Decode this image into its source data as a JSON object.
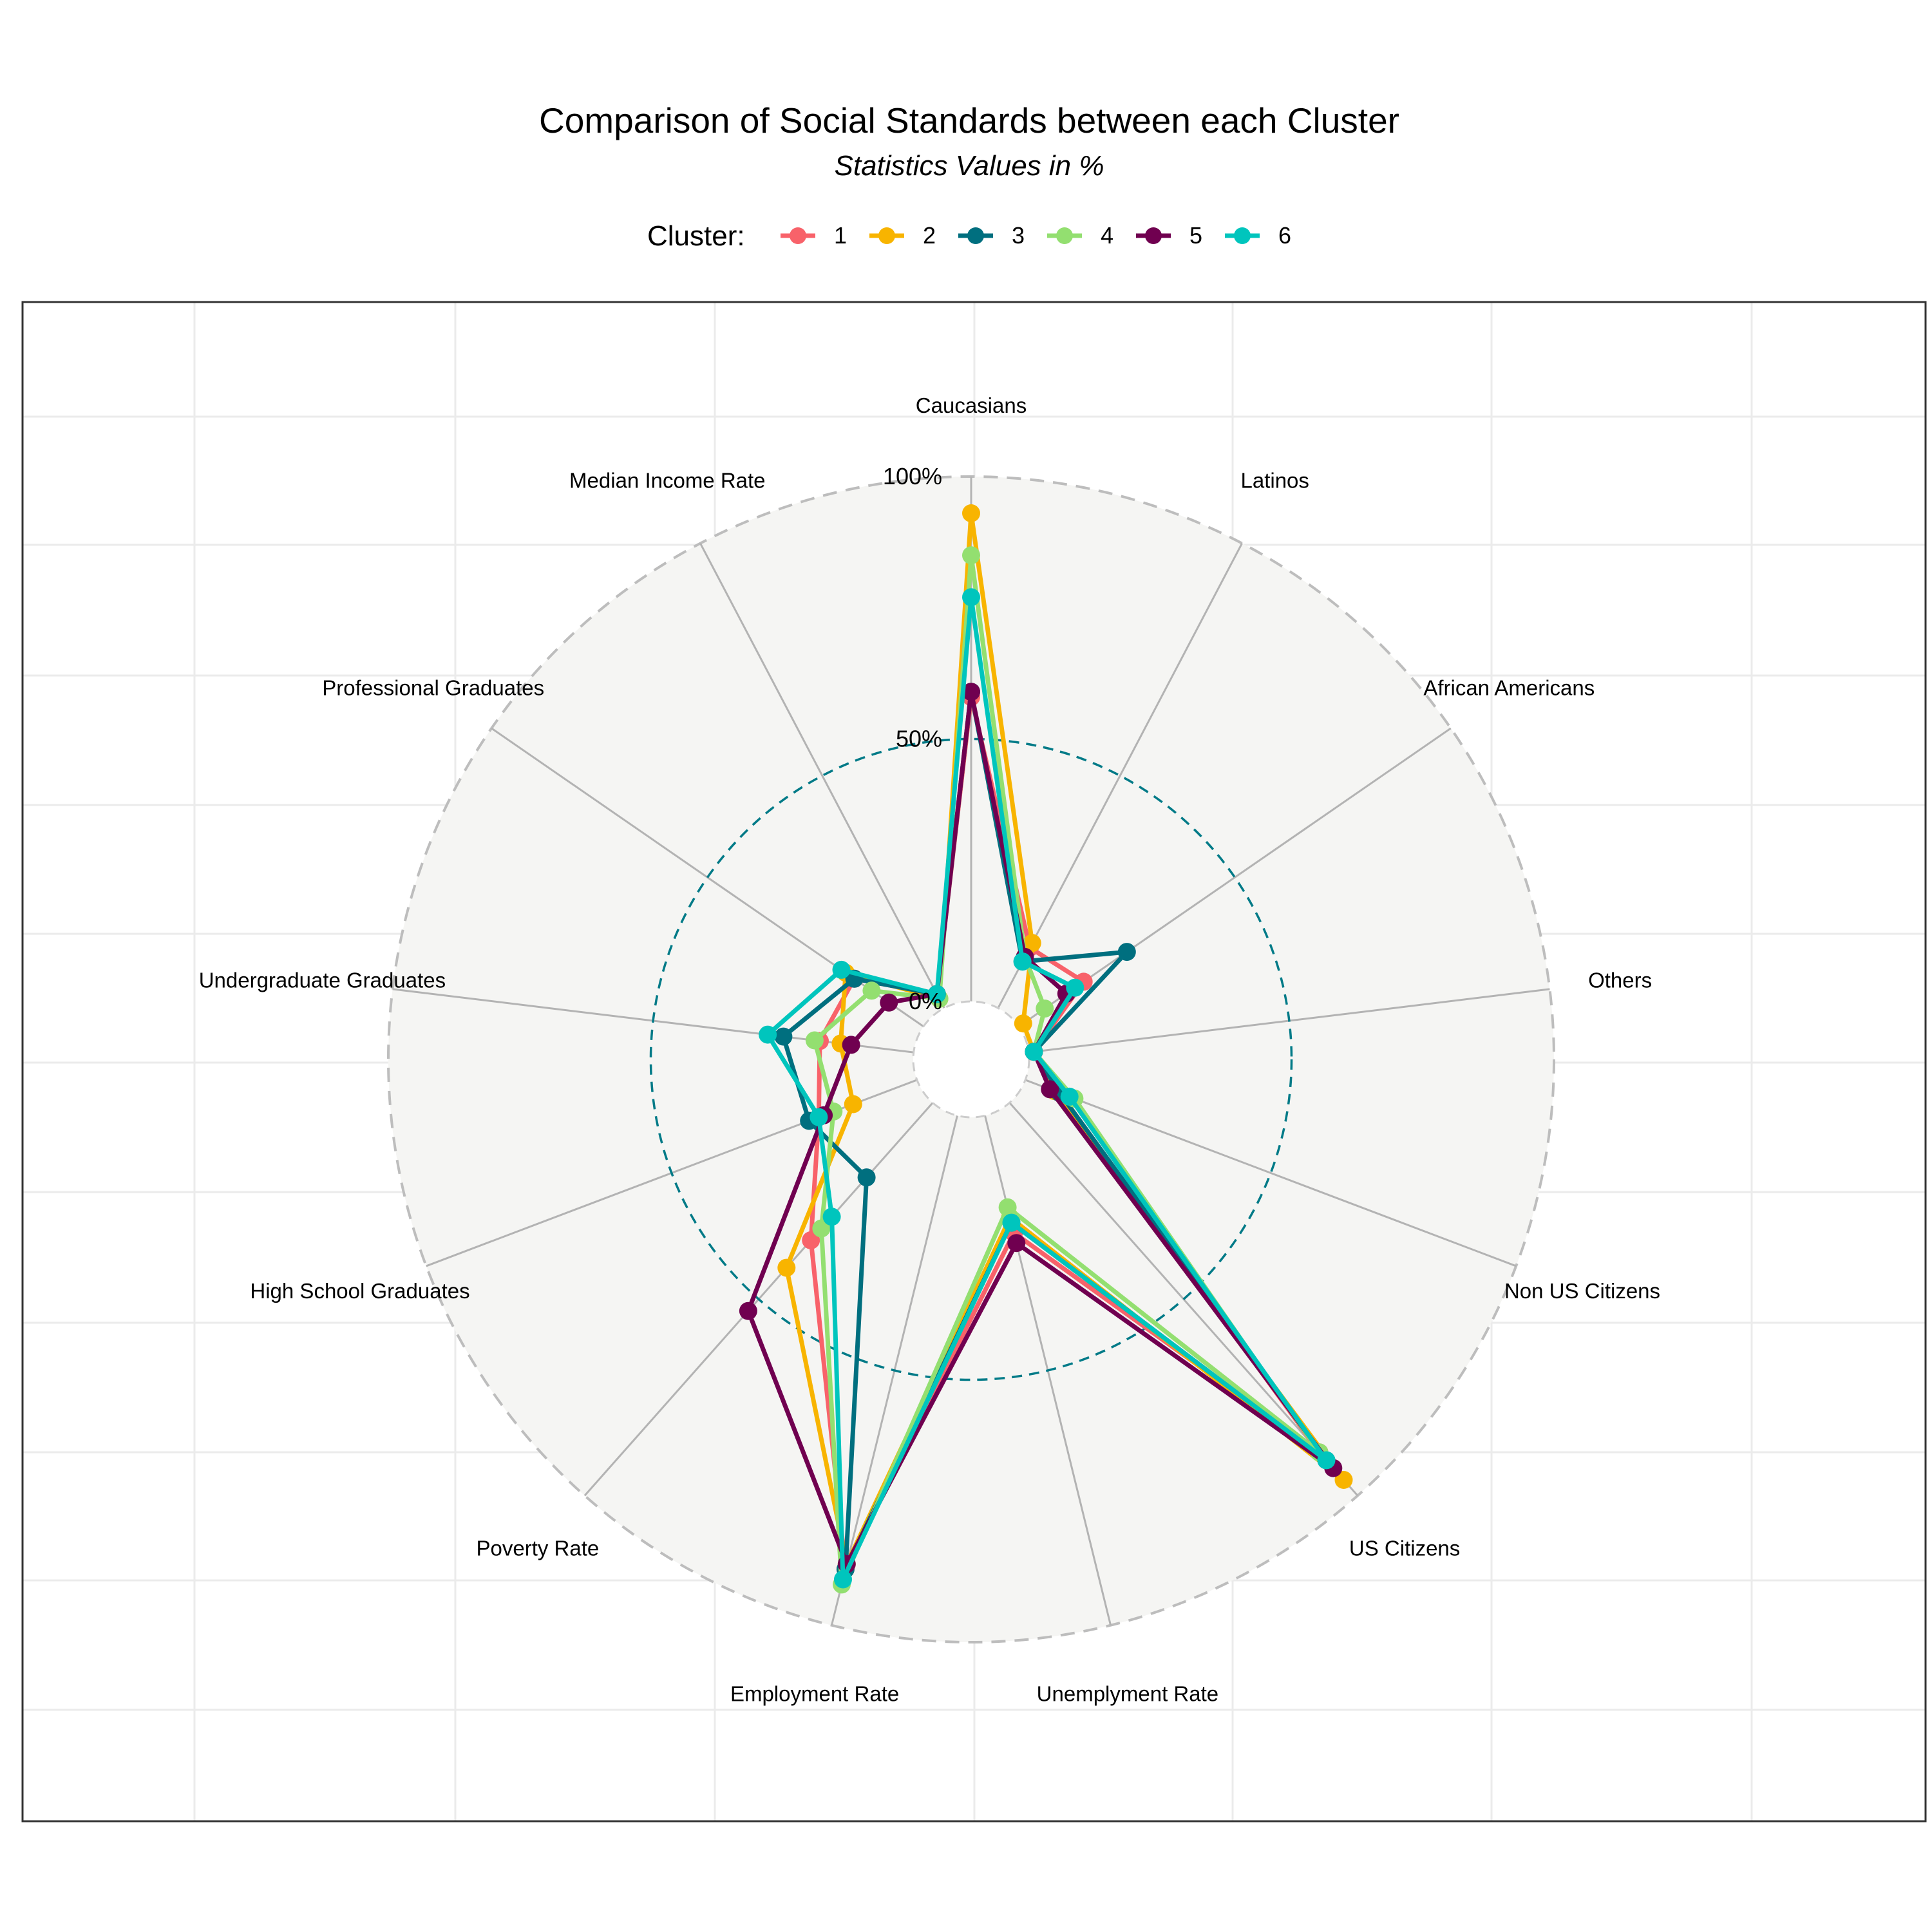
{
  "chart_data": {
    "type": "radar",
    "title": "Comparison of Social Standards between each Cluster",
    "subtitle": "Statistics Values in %",
    "legend": {
      "title": "Cluster:",
      "position": "top"
    },
    "axes": [
      "Caucasians",
      "Latinos",
      "African Americans",
      "Others",
      "Non US Citizens",
      "US Citizens",
      "Unemplyment Rate",
      "Employment Rate",
      "Poverty Rate",
      "High School Graduates",
      "Undergraduate Graduates",
      "Professional Graduates",
      "Median Income Rate"
    ],
    "tick_labels": [
      "0%",
      "50%",
      "100%"
    ],
    "range": [
      0,
      100
    ],
    "grid": true,
    "series": [
      {
        "name": "1",
        "color": "#F8626A",
        "values": [
          58,
          13,
          15,
          1,
          7,
          89,
          23,
          89,
          35,
          20,
          18,
          16,
          3
        ]
      },
      {
        "name": "2",
        "color": "#F8B400",
        "values": [
          93,
          14,
          1,
          1,
          6,
          96,
          20,
          88,
          42,
          13,
          14,
          18,
          2
        ]
      },
      {
        "name": "3",
        "color": "#006F7F",
        "values": [
          59,
          10,
          25,
          1,
          7,
          91,
          21,
          89,
          19,
          22,
          25,
          16,
          3
        ]
      },
      {
        "name": "4",
        "color": "#93DF70",
        "values": [
          85,
          11,
          6,
          1,
          10,
          89,
          18,
          92,
          32,
          17,
          19,
          12,
          2
        ]
      },
      {
        "name": "5",
        "color": "#700050",
        "values": [
          59,
          11,
          11,
          1,
          5,
          93,
          25,
          88,
          53,
          19,
          12,
          8,
          3
        ]
      },
      {
        "name": "6",
        "color": "#00C5BD",
        "values": [
          77,
          10,
          13,
          1,
          9,
          91,
          21,
          91,
          29,
          20,
          28,
          19,
          3
        ]
      }
    ]
  }
}
